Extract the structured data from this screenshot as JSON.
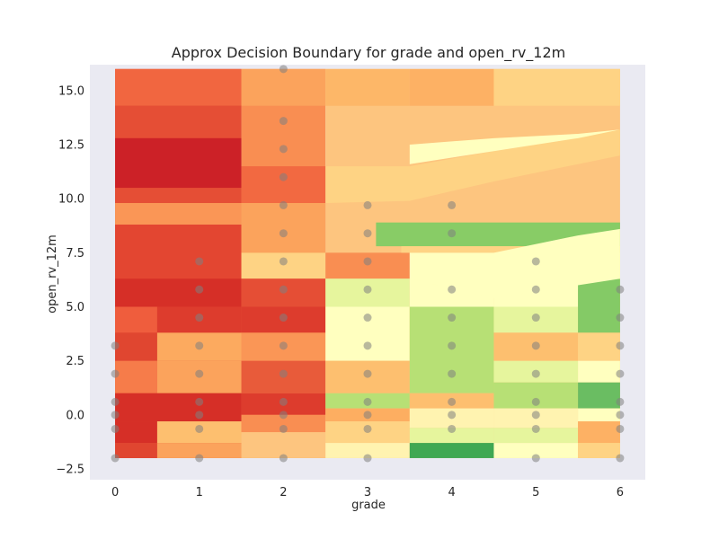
{
  "chart_data": {
    "type": "heatmap",
    "title": "Approx Decision Boundary for grade and open_rv_12m",
    "xlabel": "grade",
    "ylabel": "open_rv_12m",
    "xlim": [
      -0.3,
      6.3
    ],
    "ylim": [
      -3.0,
      16.2
    ],
    "grid": false,
    "x_ticks": [
      0,
      1,
      2,
      3,
      4,
      5,
      6
    ],
    "x_tick_labels": [
      "0",
      "1",
      "2",
      "3",
      "4",
      "5",
      "6"
    ],
    "y_ticks": [
      -2.5,
      0.0,
      2.5,
      5.0,
      7.5,
      10.0,
      12.5,
      15.0
    ],
    "y_tick_labels": [
      "−2.5",
      "0.0",
      "2.5",
      "5.0",
      "7.5",
      "10.0",
      "12.5",
      "15.0"
    ],
    "colormap": "RdYlGn",
    "background_color": "#eaeaf2",
    "region_extent": {
      "x": [
        0,
        6
      ],
      "y": [
        -2,
        16
      ]
    },
    "regions": [
      {
        "x": [
          0,
          1.5
        ],
        "y": [
          -2,
          16
        ],
        "color": "#e34a33"
      },
      {
        "x": [
          1.5,
          2.5
        ],
        "y": [
          -2,
          16
        ],
        "color": "#f98e52"
      },
      {
        "x": [
          2.5,
          6
        ],
        "y": [
          -2,
          16
        ],
        "color": "#fdc57f"
      },
      {
        "x": [
          0,
          1.5
        ],
        "y": [
          14.3,
          16
        ],
        "color": "#f16640"
      },
      {
        "x": [
          1.5,
          2.5
        ],
        "y": [
          14.3,
          16
        ],
        "color": "#fba35c"
      },
      {
        "x": [
          2.5,
          3.5
        ],
        "y": [
          14.3,
          16
        ],
        "color": "#fdb768"
      },
      {
        "x": [
          3.5,
          4.5
        ],
        "y": [
          14.3,
          16
        ],
        "color": "#fdb164"
      },
      {
        "x": [
          4.5,
          6
        ],
        "y": [
          14.3,
          16
        ],
        "color": "#fed384"
      },
      {
        "x": [
          0,
          1.5
        ],
        "y": [
          12.8,
          14.3
        ],
        "color": "#e54e35"
      },
      {
        "x": [
          0,
          1.5
        ],
        "y": [
          10.5,
          12.8
        ],
        "color": "#cc2127"
      },
      {
        "x": [
          0,
          1.5
        ],
        "y": [
          9.8,
          10.5
        ],
        "color": "#e54e35"
      },
      {
        "x": [
          0,
          1.5
        ],
        "y": [
          8.8,
          9.8
        ],
        "color": "#fa9656"
      },
      {
        "x": [
          0,
          1.5
        ],
        "y": [
          6.3,
          8.8
        ],
        "color": "#e34631"
      },
      {
        "x": [
          0,
          1.5
        ],
        "y": [
          5.0,
          6.3
        ],
        "color": "#d62f27"
      },
      {
        "x": [
          0,
          0.5
        ],
        "y": [
          3.8,
          5.0
        ],
        "color": "#ef5d3d"
      },
      {
        "x": [
          0.5,
          1.5
        ],
        "y": [
          3.8,
          5.0
        ],
        "color": "#dd3c2d"
      },
      {
        "x": [
          0,
          0.5
        ],
        "y": [
          2.5,
          3.8
        ],
        "color": "#e04630"
      },
      {
        "x": [
          0.5,
          1.5
        ],
        "y": [
          2.5,
          3.8
        ],
        "color": "#fcaa5f"
      },
      {
        "x": [
          0,
          0.5
        ],
        "y": [
          1.0,
          2.5
        ],
        "color": "#f67c4a"
      },
      {
        "x": [
          0.5,
          1.5
        ],
        "y": [
          1.0,
          2.5
        ],
        "color": "#fba35c"
      },
      {
        "x": [
          0,
          1.5
        ],
        "y": [
          -0.3,
          1.0
        ],
        "color": "#d62f27"
      },
      {
        "x": [
          0,
          0.5
        ],
        "y": [
          -1.3,
          -0.3
        ],
        "color": "#d62f27"
      },
      {
        "x": [
          0.5,
          1.5
        ],
        "y": [
          -1.3,
          -0.3
        ],
        "color": "#fdbf6f"
      },
      {
        "x": [
          0,
          0.5
        ],
        "y": [
          -2,
          -1.3
        ],
        "color": "#e04630"
      },
      {
        "x": [
          0.5,
          1.5
        ],
        "y": [
          -2,
          -1.3
        ],
        "color": "#fba35c"
      },
      {
        "x": [
          1.5,
          2.5
        ],
        "y": [
          9.8,
          11.5
        ],
        "color": "#f26941"
      },
      {
        "x": [
          1.5,
          2.5
        ],
        "y": [
          7.5,
          9.8
        ],
        "color": "#fba35c"
      },
      {
        "x": [
          1.5,
          2.5
        ],
        "y": [
          6.3,
          7.5
        ],
        "color": "#fed384"
      },
      {
        "x": [
          1.5,
          2.5
        ],
        "y": [
          5.0,
          6.3
        ],
        "color": "#e54e35"
      },
      {
        "x": [
          1.5,
          2.5
        ],
        "y": [
          3.8,
          5.0
        ],
        "color": "#dd3c2d"
      },
      {
        "x": [
          1.5,
          2.5
        ],
        "y": [
          2.5,
          3.8
        ],
        "color": "#fa9656"
      },
      {
        "x": [
          1.5,
          2.5
        ],
        "y": [
          1.0,
          2.5
        ],
        "color": "#e85b3a"
      },
      {
        "x": [
          1.5,
          2.5
        ],
        "y": [
          0.0,
          1.0
        ],
        "color": "#dd3c2d"
      },
      {
        "x": [
          1.5,
          2.5
        ],
        "y": [
          -0.8,
          0.0
        ],
        "color": "#f98e52"
      },
      {
        "x": [
          1.5,
          2.5
        ],
        "y": [
          -2,
          -0.8
        ],
        "color": "#fdc57f"
      },
      {
        "x": [
          2.5,
          3.5
        ],
        "y": [
          6.3,
          7.5
        ],
        "color": "#f98e52"
      },
      {
        "x": [
          2.5,
          3.5
        ],
        "y": [
          5.0,
          6.3
        ],
        "color": "#e6f59d"
      },
      {
        "x": [
          2.5,
          3.5
        ],
        "y": [
          2.5,
          5.0
        ],
        "color": "#ffffbf"
      },
      {
        "x": [
          2.5,
          3.5
        ],
        "y": [
          1.0,
          2.5
        ],
        "color": "#fdbf6f"
      },
      {
        "x": [
          2.5,
          3.5
        ],
        "y": [
          0.3,
          1.0
        ],
        "color": "#b7e075"
      },
      {
        "x": [
          2.5,
          3.5
        ],
        "y": [
          -0.3,
          0.3
        ],
        "color": "#fdae61"
      },
      {
        "x": [
          2.5,
          3.5
        ],
        "y": [
          -1.3,
          -0.3
        ],
        "color": "#fed384"
      },
      {
        "x": [
          2.5,
          3.5
        ],
        "y": [
          -2,
          -1.3
        ],
        "color": "#fff3b0"
      },
      {
        "x": [
          3.5,
          4.5
        ],
        "y": [
          5.0,
          6.3
        ],
        "color": "#ffffbf"
      },
      {
        "x": [
          3.5,
          4.5
        ],
        "y": [
          1.0,
          5.0
        ],
        "color": "#b7e075"
      },
      {
        "x": [
          3.5,
          4.5
        ],
        "y": [
          0.3,
          1.0
        ],
        "color": "#fdbf6f"
      },
      {
        "x": [
          3.5,
          4.5
        ],
        "y": [
          -0.6,
          0.3
        ],
        "color": "#fff3b0"
      },
      {
        "x": [
          3.5,
          4.5
        ],
        "y": [
          -1.3,
          -0.6
        ],
        "color": "#e6f59d"
      },
      {
        "x": [
          3.5,
          4.5
        ],
        "y": [
          -2,
          -1.3
        ],
        "color": "#3fa853"
      },
      {
        "x": [
          4.5,
          5.5
        ],
        "y": [
          5.0,
          7.5
        ],
        "color": "#ffffbf"
      },
      {
        "x": [
          4.5,
          5.5
        ],
        "y": [
          3.8,
          5.0
        ],
        "color": "#e6f59d"
      },
      {
        "x": [
          4.5,
          5.5
        ],
        "y": [
          2.5,
          3.8
        ],
        "color": "#fdbf6f"
      },
      {
        "x": [
          4.5,
          5.5
        ],
        "y": [
          1.5,
          2.5
        ],
        "color": "#e6f59d"
      },
      {
        "x": [
          4.5,
          5.5
        ],
        "y": [
          0.3,
          1.5
        ],
        "color": "#b7e075"
      },
      {
        "x": [
          4.5,
          5.5
        ],
        "y": [
          -0.6,
          0.3
        ],
        "color": "#fff3b0"
      },
      {
        "x": [
          4.5,
          5.5
        ],
        "y": [
          -1.3,
          -0.6
        ],
        "color": "#e6f59d"
      },
      {
        "x": [
          4.5,
          5.5
        ],
        "y": [
          -2,
          -1.3
        ],
        "color": "#ffffbf"
      },
      {
        "x": [
          5.5,
          6
        ],
        "y": [
          5.8,
          7.5
        ],
        "color": "#ffffbf"
      },
      {
        "x": [
          5.5,
          6
        ],
        "y": [
          3.8,
          6.3
        ],
        "color": "#84ca66"
      },
      {
        "x": [
          5.5,
          6
        ],
        "y": [
          2.5,
          3.8
        ],
        "color": "#fed384"
      },
      {
        "x": [
          5.5,
          6
        ],
        "y": [
          1.5,
          2.5
        ],
        "color": "#ffffbf"
      },
      {
        "x": [
          5.5,
          6
        ],
        "y": [
          0.3,
          1.5
        ],
        "color": "#6abd62"
      },
      {
        "x": [
          5.5,
          6
        ],
        "y": [
          -0.3,
          0.3
        ],
        "color": "#ffffbf"
      },
      {
        "x": [
          5.5,
          6
        ],
        "y": [
          -1.3,
          -0.3
        ],
        "color": "#fdb164"
      },
      {
        "x": [
          5.5,
          6
        ],
        "y": [
          -2,
          -1.3
        ],
        "color": "#fed384"
      },
      {
        "x": [
          3.1,
          6
        ],
        "y": [
          7.8,
          8.9
        ],
        "color": "#88cc66"
      },
      {
        "x": [
          3.4,
          6
        ],
        "y": [
          7.5,
          7.8
        ],
        "color": "#fed384"
      }
    ],
    "bands": [
      {
        "color": "#fed384",
        "upper": [
          [
            2.5,
            11.5
          ],
          [
            3.5,
            11.5
          ],
          [
            4.5,
            12.2
          ],
          [
            5.5,
            12.8
          ],
          [
            6,
            13.2
          ]
        ],
        "lower": [
          [
            2.5,
            9.8
          ],
          [
            3.5,
            9.9
          ],
          [
            4.5,
            10.8
          ],
          [
            5.5,
            11.6
          ],
          [
            6,
            12.0
          ]
        ]
      },
      {
        "color": "#ffffbf",
        "upper": [
          [
            3.5,
            12.5
          ],
          [
            4.5,
            12.8
          ],
          [
            5.5,
            13.0
          ],
          [
            6,
            13.2
          ]
        ],
        "lower": [
          [
            3.5,
            11.6
          ],
          [
            4.5,
            12.2
          ],
          [
            5.5,
            12.8
          ],
          [
            6,
            13.2
          ]
        ]
      },
      {
        "color": "#ffffbf",
        "upper": [
          [
            3.5,
            7.5
          ],
          [
            4.5,
            7.5
          ],
          [
            5.5,
            8.3
          ],
          [
            6,
            8.6
          ]
        ],
        "lower": [
          [
            3.5,
            6.3
          ],
          [
            4.5,
            5.4
          ],
          [
            5.5,
            6.0
          ],
          [
            6,
            6.3
          ]
        ]
      }
    ],
    "points": [
      {
        "x": 0,
        "y": -2
      },
      {
        "x": 0,
        "y": -0.65
      },
      {
        "x": 0,
        "y": 0
      },
      {
        "x": 0,
        "y": 0.6
      },
      {
        "x": 0,
        "y": 1.9
      },
      {
        "x": 0,
        "y": 3.2
      },
      {
        "x": 1,
        "y": -2
      },
      {
        "x": 1,
        "y": -0.65
      },
      {
        "x": 1,
        "y": 0
      },
      {
        "x": 1,
        "y": 0.6
      },
      {
        "x": 1,
        "y": 1.9
      },
      {
        "x": 1,
        "y": 3.2
      },
      {
        "x": 1,
        "y": 4.5
      },
      {
        "x": 1,
        "y": 5.8
      },
      {
        "x": 1,
        "y": 7.1
      },
      {
        "x": 2,
        "y": -2
      },
      {
        "x": 2,
        "y": -0.65
      },
      {
        "x": 2,
        "y": 0
      },
      {
        "x": 2,
        "y": 0.6
      },
      {
        "x": 2,
        "y": 1.9
      },
      {
        "x": 2,
        "y": 3.2
      },
      {
        "x": 2,
        "y": 4.5
      },
      {
        "x": 2,
        "y": 5.8
      },
      {
        "x": 2,
        "y": 7.1
      },
      {
        "x": 2,
        "y": 8.4
      },
      {
        "x": 2,
        "y": 9.7
      },
      {
        "x": 2,
        "y": 11.0
      },
      {
        "x": 2,
        "y": 12.3
      },
      {
        "x": 2,
        "y": 13.6
      },
      {
        "x": 2,
        "y": 16.0
      },
      {
        "x": 3,
        "y": -2
      },
      {
        "x": 3,
        "y": -0.65
      },
      {
        "x": 3,
        "y": 0
      },
      {
        "x": 3,
        "y": 0.6
      },
      {
        "x": 3,
        "y": 1.9
      },
      {
        "x": 3,
        "y": 3.2
      },
      {
        "x": 3,
        "y": 4.5
      },
      {
        "x": 3,
        "y": 5.8
      },
      {
        "x": 3,
        "y": 7.1
      },
      {
        "x": 3,
        "y": 8.4
      },
      {
        "x": 3,
        "y": 9.7
      },
      {
        "x": 4,
        "y": -0.65
      },
      {
        "x": 4,
        "y": 0
      },
      {
        "x": 4,
        "y": 0.6
      },
      {
        "x": 4,
        "y": 1.9
      },
      {
        "x": 4,
        "y": 3.2
      },
      {
        "x": 4,
        "y": 4.5
      },
      {
        "x": 4,
        "y": 5.8
      },
      {
        "x": 4,
        "y": 8.4
      },
      {
        "x": 4,
        "y": 9.7
      },
      {
        "x": 5,
        "y": -2
      },
      {
        "x": 5,
        "y": -0.65
      },
      {
        "x": 5,
        "y": 0
      },
      {
        "x": 5,
        "y": 0.6
      },
      {
        "x": 5,
        "y": 1.9
      },
      {
        "x": 5,
        "y": 3.2
      },
      {
        "x": 5,
        "y": 4.5
      },
      {
        "x": 5,
        "y": 5.8
      },
      {
        "x": 5,
        "y": 7.1
      },
      {
        "x": 6,
        "y": -2
      },
      {
        "x": 6,
        "y": -0.65
      },
      {
        "x": 6,
        "y": 0
      },
      {
        "x": 6,
        "y": 0.6
      },
      {
        "x": 6,
        "y": 1.9
      },
      {
        "x": 6,
        "y": 3.2
      },
      {
        "x": 6,
        "y": 4.5
      },
      {
        "x": 6,
        "y": 5.8
      }
    ],
    "point_color": "#808080"
  }
}
